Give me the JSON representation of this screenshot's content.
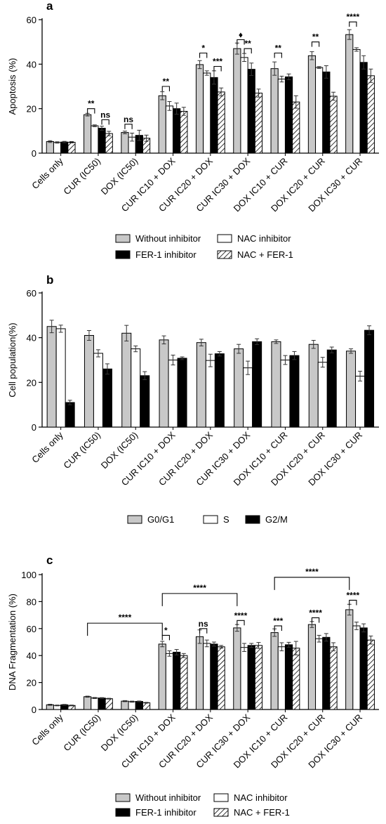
{
  "figure": {
    "colors": {
      "gray": "#c8c8c8",
      "white": "#ffffff",
      "black": "#000000",
      "hatch": "#ffffff"
    }
  },
  "chart_data": [
    {
      "panel_label": "a",
      "type": "bar",
      "ylabel": "Apoptosis (%)",
      "ylim": [
        0,
        60
      ],
      "yticks": [
        0,
        20,
        40,
        60
      ],
      "grid": false,
      "legend_position": "bottom",
      "categories": [
        "Cells only",
        "CUR (IC50)",
        "DOX (IC50)",
        "CUR IC10 + DOX",
        "CUR IC20 + DOX",
        "CUR IC30 + DOX",
        "DOX IC10 + CUR",
        "DOX IC20 + CUR",
        "DOX IC30 + CUR"
      ],
      "series": [
        {
          "name": "Without inhibitor",
          "fill": "gray",
          "values": [
            5.2,
            17.3,
            9.3,
            25.8,
            39.8,
            47.0,
            38.0,
            43.8,
            53.3
          ],
          "errors": [
            0.4,
            0.6,
            0.6,
            1.8,
            1.8,
            2.5,
            3.0,
            1.8,
            2.2
          ]
        },
        {
          "name": "NAC inhibitor",
          "fill": "white",
          "values": [
            4.8,
            12.3,
            7.2,
            21.2,
            36.0,
            43.0,
            33.3,
            38.5,
            46.6
          ],
          "errors": [
            0.3,
            0.4,
            1.8,
            2.0,
            1.0,
            1.8,
            1.3,
            0.4,
            0.8
          ]
        },
        {
          "name": "FER-1 inhibitor",
          "fill": "black",
          "values": [
            5.0,
            11.2,
            8.0,
            20.0,
            34.0,
            37.7,
            34.3,
            36.5,
            40.8
          ],
          "errors": [
            0.3,
            0.9,
            2.3,
            2.5,
            3.0,
            2.8,
            1.3,
            2.8,
            3.0
          ]
        },
        {
          "name": "NAC + FER-1",
          "fill": "hatch",
          "values": [
            4.9,
            8.8,
            6.7,
            18.8,
            27.5,
            27.0,
            23.0,
            25.6,
            34.8
          ],
          "errors": [
            0.3,
            1.0,
            1.4,
            1.8,
            1.8,
            1.8,
            2.8,
            1.8,
            3.0
          ]
        }
      ],
      "annotations": [
        {
          "text": "**",
          "category": 1,
          "series_a": 0,
          "series_b": 1,
          "level": 20
        },
        {
          "text": "ns",
          "category": 1,
          "series_a": 2,
          "series_b": 3,
          "level": 15
        },
        {
          "text": "ns",
          "category": 2,
          "series_a": 0,
          "series_b": 1,
          "level": 13
        },
        {
          "text": "**",
          "category": 3,
          "series_a": 0,
          "series_b": 1,
          "level": 30
        },
        {
          "text": "*",
          "category": 4,
          "series_a": 0,
          "series_b": 1,
          "level": 45
        },
        {
          "text": "***",
          "category": 4,
          "series_a": 2,
          "series_b": 3,
          "level": 39
        },
        {
          "text": "♦",
          "category": 5,
          "series_a": 0,
          "series_b": 1,
          "level": 51
        },
        {
          "text": "**",
          "category": 5,
          "series_a": 1,
          "series_b": 2,
          "level": 47
        },
        {
          "text": "**",
          "category": 6,
          "series_a": 0,
          "series_b": 1,
          "level": 45
        },
        {
          "text": "**",
          "category": 7,
          "series_a": 0,
          "series_b": 1,
          "level": 50
        },
        {
          "text": "****",
          "category": 8,
          "series_a": 0,
          "series_b": 1,
          "level": 59
        }
      ]
    },
    {
      "panel_label": "b",
      "type": "bar",
      "ylabel": "Cell population(%)",
      "ylim": [
        0,
        60
      ],
      "yticks": [
        0,
        20,
        40,
        60
      ],
      "grid": false,
      "legend_position": "bottom",
      "categories": [
        "Cells only",
        "CUR (IC50)",
        "DOX (IC50)",
        "CUR IC10 + DOX",
        "CUR IC20 + DOX",
        "CUR IC30 + DOX",
        "DOX IC10 + CUR",
        "DOX IC20 + CUR",
        "DOX IC30 + CUR"
      ],
      "series": [
        {
          "name": "G0/G1",
          "fill": "gray",
          "values": [
            45.0,
            41.0,
            42.0,
            39.0,
            37.8,
            35.0,
            38.2,
            37.0,
            34.0
          ],
          "errors": [
            2.8,
            2.2,
            3.5,
            1.8,
            1.5,
            2.0,
            0.8,
            1.8,
            1.0
          ]
        },
        {
          "name": "S",
          "fill": "white",
          "values": [
            44.0,
            33.0,
            35.0,
            30.0,
            29.8,
            26.5,
            30.0,
            29.0,
            22.8
          ],
          "errors": [
            1.6,
            1.6,
            1.3,
            2.2,
            2.8,
            3.0,
            2.0,
            2.2,
            2.2
          ]
        },
        {
          "name": "G2/M",
          "fill": "black",
          "values": [
            11.0,
            26.0,
            23.0,
            30.8,
            32.8,
            38.2,
            32.0,
            34.5,
            43.3
          ],
          "errors": [
            1.0,
            2.3,
            1.8,
            0.6,
            1.0,
            1.3,
            1.8,
            1.3,
            2.0
          ]
        }
      ],
      "annotations": []
    },
    {
      "panel_label": "c",
      "type": "bar",
      "ylabel": "DNA Fragmentation (%)",
      "ylim": [
        0,
        100
      ],
      "yticks": [
        0,
        20,
        40,
        60,
        80,
        100
      ],
      "grid": false,
      "legend_position": "bottom",
      "categories": [
        "Cells only",
        "CUR (IC50)",
        "DOX (IC50)",
        "CUR IC10 + DOX",
        "CUR IC20 + DOX",
        "CUR IC30 + DOX",
        "DOX IC10 + CUR",
        "DOX IC20 + CUR",
        "DOX IC30 + CUR"
      ],
      "series": [
        {
          "name": "Without inhibitor",
          "fill": "gray",
          "values": [
            3.5,
            9.5,
            6.2,
            48.5,
            54.0,
            60.5,
            57.0,
            63.0,
            74.0
          ],
          "errors": [
            0.4,
            0.4,
            0.4,
            2.0,
            5.0,
            2.5,
            2.8,
            2.2,
            4.0
          ]
        },
        {
          "name": "NAC inhibitor",
          "fill": "white",
          "values": [
            3.0,
            8.5,
            5.8,
            41.5,
            49.0,
            46.0,
            46.5,
            52.5,
            62.0
          ],
          "errors": [
            0.3,
            0.4,
            0.4,
            2.0,
            2.5,
            3.0,
            3.0,
            2.5,
            2.8
          ]
        },
        {
          "name": "FER-1 inhibitor",
          "fill": "black",
          "values": [
            3.5,
            8.5,
            6.0,
            42.5,
            48.5,
            47.5,
            48.0,
            53.5,
            60.5
          ],
          "errors": [
            0.3,
            0.3,
            0.3,
            2.0,
            1.5,
            1.5,
            1.8,
            2.8,
            3.0
          ]
        },
        {
          "name": "NAC + FER-1",
          "fill": "hatch",
          "values": [
            3.0,
            8.0,
            5.0,
            40.0,
            46.5,
            47.5,
            45.5,
            46.5,
            51.5
          ],
          "errors": [
            0.3,
            0.3,
            0.3,
            1.5,
            1.0,
            2.2,
            5.0,
            3.0,
            3.0
          ]
        }
      ],
      "annotations": [
        {
          "text": "*",
          "category": 3,
          "series_a": 0,
          "series_b": 1,
          "level": 55
        },
        {
          "text": "ns",
          "category": 4,
          "series_a": 0,
          "series_b": 1,
          "level": 60
        },
        {
          "text": "****",
          "category": 5,
          "series_a": 0,
          "series_b": 1,
          "level": 66
        },
        {
          "text": "***",
          "category": 6,
          "series_a": 0,
          "series_b": 1,
          "level": 62
        },
        {
          "text": "****",
          "category": 7,
          "series_a": 0,
          "series_b": 1,
          "level": 68
        },
        {
          "text": "****",
          "category": 8,
          "series_a": 0,
          "series_b": 1,
          "level": 81
        }
      ],
      "long_brackets": [
        {
          "text": "****",
          "from_category": 1,
          "to_category": 3,
          "level": 64
        },
        {
          "text": "****",
          "from_category": 3,
          "to_category": 5,
          "level": 86
        },
        {
          "text": "****",
          "from_category": 6,
          "to_category": 8,
          "level": 98
        }
      ]
    }
  ]
}
